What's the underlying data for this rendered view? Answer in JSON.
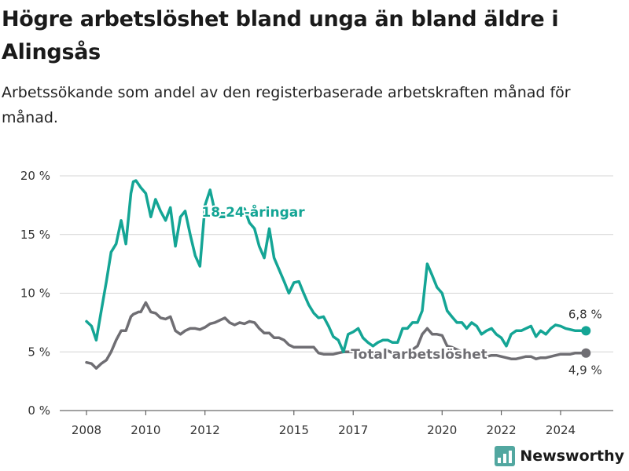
{
  "colors": {
    "youth": "#14a595",
    "total": "#6f6e73",
    "grid": "#d4d4d4",
    "brand": "#52a7a0"
  },
  "brand": {
    "name": "Newsworthy",
    "icon": "bar-chart-icon"
  },
  "chart_data": {
    "type": "line",
    "title": "Högre arbetslöshet bland unga än bland äldre i Alingsås",
    "subtitle": "Arbetssökande som andel av den registerbaserade arbetskraften månad för månad.",
    "ylim": [
      0,
      20
    ],
    "y_ticks": [
      0,
      5,
      10,
      15,
      20
    ],
    "y_tick_labels": [
      "0 %",
      "5 %",
      "10 %",
      "15 %",
      "20 %"
    ],
    "x_ticks": [
      2008,
      2010,
      2012,
      2015,
      2017,
      2020,
      2022,
      2024
    ],
    "x_tick_labels": [
      "2008",
      "2010",
      "2012",
      "2015",
      "2017",
      "2020",
      "2022",
      "2024"
    ],
    "grid": true,
    "series": [
      {
        "name": "18-24-åringar",
        "end_label": "6,8 %",
        "x": [
          2008.0,
          2008.17,
          2008.33,
          2008.5,
          2008.67,
          2008.83,
          2009.0,
          2009.17,
          2009.33,
          2009.5,
          2009.58,
          2009.67,
          2009.75,
          2009.83,
          2010.0,
          2010.17,
          2010.33,
          2010.5,
          2010.67,
          2010.83,
          2011.0,
          2011.17,
          2011.33,
          2011.5,
          2011.67,
          2011.83,
          2012.0,
          2012.17,
          2012.33,
          2012.5,
          2012.67,
          2012.83,
          2013.0,
          2013.17,
          2013.33,
          2013.5,
          2013.67,
          2013.83,
          2014.0,
          2014.17,
          2014.33,
          2014.5,
          2014.67,
          2014.83,
          2015.0,
          2015.17,
          2015.33,
          2015.5,
          2015.67,
          2015.83,
          2016.0,
          2016.17,
          2016.33,
          2016.5,
          2016.67,
          2016.83,
          2017.0,
          2017.17,
          2017.33,
          2017.5,
          2017.67,
          2017.83,
          2018.0,
          2018.17,
          2018.33,
          2018.5,
          2018.67,
          2018.83,
          2019.0,
          2019.17,
          2019.33,
          2019.5,
          2019.67,
          2019.83,
          2020.0,
          2020.17,
          2020.33,
          2020.5,
          2020.67,
          2020.83,
          2021.0,
          2021.17,
          2021.33,
          2021.5,
          2021.67,
          2021.83,
          2022.0,
          2022.17,
          2022.33,
          2022.5,
          2022.67,
          2022.83,
          2023.0,
          2023.17,
          2023.33,
          2023.5,
          2023.67,
          2023.83,
          2024.0,
          2024.17,
          2024.33,
          2024.5,
          2024.67,
          2024.83
        ],
        "values": [
          7.6,
          7.2,
          6.0,
          8.5,
          11.0,
          13.5,
          14.2,
          16.2,
          14.2,
          18.5,
          19.5,
          19.6,
          19.3,
          19.0,
          18.5,
          16.5,
          18.0,
          17.0,
          16.2,
          17.3,
          14.0,
          16.5,
          17.0,
          15.0,
          13.2,
          12.3,
          17.5,
          18.8,
          17.0,
          16.5,
          16.5,
          16.8,
          17.0,
          16.8,
          17.2,
          16.0,
          15.5,
          14.0,
          13.0,
          15.5,
          13.0,
          12.0,
          11.0,
          10.0,
          10.9,
          11.0,
          10.0,
          9.0,
          8.3,
          7.9,
          8.0,
          7.2,
          6.3,
          6.0,
          5.0,
          6.5,
          6.7,
          7.0,
          6.2,
          5.8,
          5.5,
          5.8,
          6.0,
          6.0,
          5.8,
          5.8,
          7.0,
          7.0,
          7.5,
          7.5,
          8.5,
          12.5,
          11.5,
          10.5,
          10.0,
          8.5,
          8.0,
          7.5,
          7.5,
          7.0,
          7.5,
          7.2,
          6.5,
          6.8,
          7.0,
          6.5,
          6.2,
          5.5,
          6.5,
          6.8,
          6.8,
          7.0,
          7.2,
          6.3,
          6.8,
          6.5,
          7.0,
          7.3,
          7.2,
          7.0,
          6.9,
          6.8,
          6.8,
          6.8
        ]
      },
      {
        "name": "Total arbetslöshet",
        "end_label": "4,9 %",
        "x": [
          2008.0,
          2008.17,
          2008.33,
          2008.5,
          2008.67,
          2008.83,
          2009.0,
          2009.17,
          2009.33,
          2009.5,
          2009.58,
          2009.67,
          2009.75,
          2009.83,
          2010.0,
          2010.17,
          2010.33,
          2010.5,
          2010.67,
          2010.83,
          2011.0,
          2011.17,
          2011.33,
          2011.5,
          2011.67,
          2011.83,
          2012.0,
          2012.17,
          2012.33,
          2012.5,
          2012.67,
          2012.83,
          2013.0,
          2013.17,
          2013.33,
          2013.5,
          2013.67,
          2013.83,
          2014.0,
          2014.17,
          2014.33,
          2014.5,
          2014.67,
          2014.83,
          2015.0,
          2015.17,
          2015.33,
          2015.5,
          2015.67,
          2015.83,
          2016.0,
          2016.17,
          2016.33,
          2016.5,
          2016.67,
          2016.83,
          2017.0,
          2017.17,
          2017.33,
          2017.5,
          2017.67,
          2017.83,
          2018.0,
          2018.17,
          2018.33,
          2018.5,
          2018.67,
          2018.83,
          2019.0,
          2019.17,
          2019.33,
          2019.5,
          2019.67,
          2019.83,
          2020.0,
          2020.17,
          2020.33,
          2020.5,
          2020.67,
          2020.83,
          2021.0,
          2021.17,
          2021.33,
          2021.5,
          2021.67,
          2021.83,
          2022.0,
          2022.17,
          2022.33,
          2022.5,
          2022.67,
          2022.83,
          2023.0,
          2023.17,
          2023.33,
          2023.5,
          2023.67,
          2023.83,
          2024.0,
          2024.17,
          2024.33,
          2024.5,
          2024.67,
          2024.83
        ],
        "values": [
          4.1,
          4.0,
          3.6,
          4.0,
          4.3,
          5.0,
          6.0,
          6.8,
          6.8,
          8.0,
          8.2,
          8.3,
          8.4,
          8.4,
          9.2,
          8.4,
          8.3,
          7.9,
          7.8,
          8.0,
          6.8,
          6.5,
          6.8,
          7.0,
          7.0,
          6.9,
          7.1,
          7.4,
          7.5,
          7.7,
          7.9,
          7.5,
          7.3,
          7.5,
          7.4,
          7.6,
          7.5,
          7.0,
          6.6,
          6.6,
          6.2,
          6.2,
          6.0,
          5.6,
          5.4,
          5.4,
          5.4,
          5.4,
          5.4,
          4.9,
          4.8,
          4.8,
          4.8,
          4.9,
          5.0,
          5.0,
          5.0,
          5.2,
          5.0,
          4.9,
          4.8,
          4.8,
          4.9,
          5.1,
          4.9,
          4.8,
          4.9,
          5.0,
          5.2,
          5.5,
          6.5,
          7.0,
          6.5,
          6.5,
          6.4,
          5.5,
          5.4,
          5.2,
          5.0,
          4.9,
          4.8,
          4.8,
          4.5,
          4.6,
          4.7,
          4.7,
          4.6,
          4.5,
          4.4,
          4.4,
          4.5,
          4.6,
          4.6,
          4.4,
          4.5,
          4.5,
          4.6,
          4.7,
          4.8,
          4.8,
          4.8,
          4.9,
          4.9,
          4.9
        ]
      }
    ]
  }
}
